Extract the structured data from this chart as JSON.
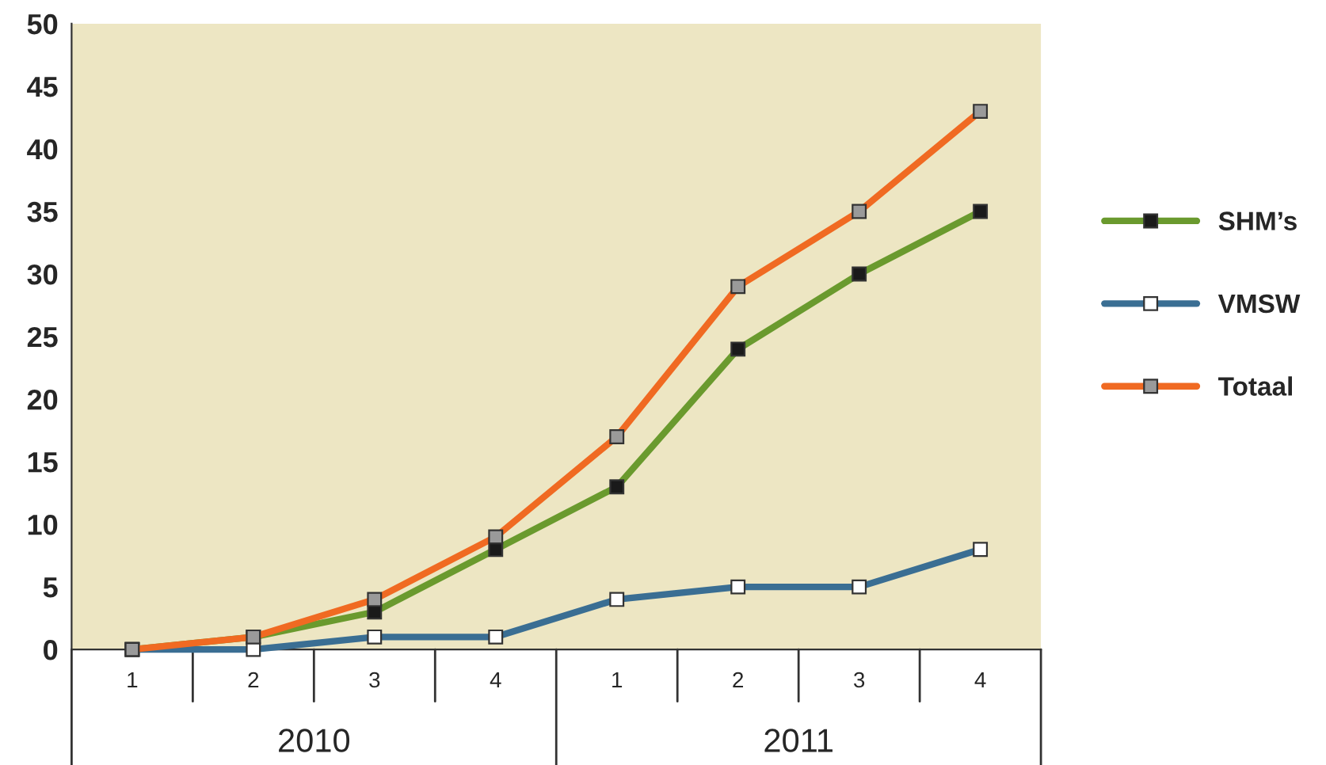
{
  "chart_data": {
    "type": "line",
    "categories": [
      "1",
      "2",
      "3",
      "4",
      "1",
      "2",
      "3",
      "4"
    ],
    "series": [
      {
        "name": "SHM’s",
        "color": "#6a9a2e",
        "values": [
          0,
          1,
          3,
          8,
          13,
          24,
          30,
          35
        ]
      },
      {
        "name": "VMSW",
        "color": "#3a6e93",
        "values": [
          0,
          0,
          1,
          1,
          4,
          5,
          5,
          8
        ]
      },
      {
        "name": "Totaal",
        "color": "#f06a22",
        "values": [
          0,
          1,
          4,
          9,
          17,
          29,
          35,
          43
        ]
      }
    ],
    "annotations": [
      "2010",
      "2011"
    ],
    "ylim": [
      0,
      50
    ],
    "yticks": [
      0,
      5,
      10,
      15,
      20,
      25,
      30,
      35,
      40,
      45,
      50
    ],
    "grid": false,
    "legend": "right",
    "marker": "square",
    "line_style": "solid"
  }
}
